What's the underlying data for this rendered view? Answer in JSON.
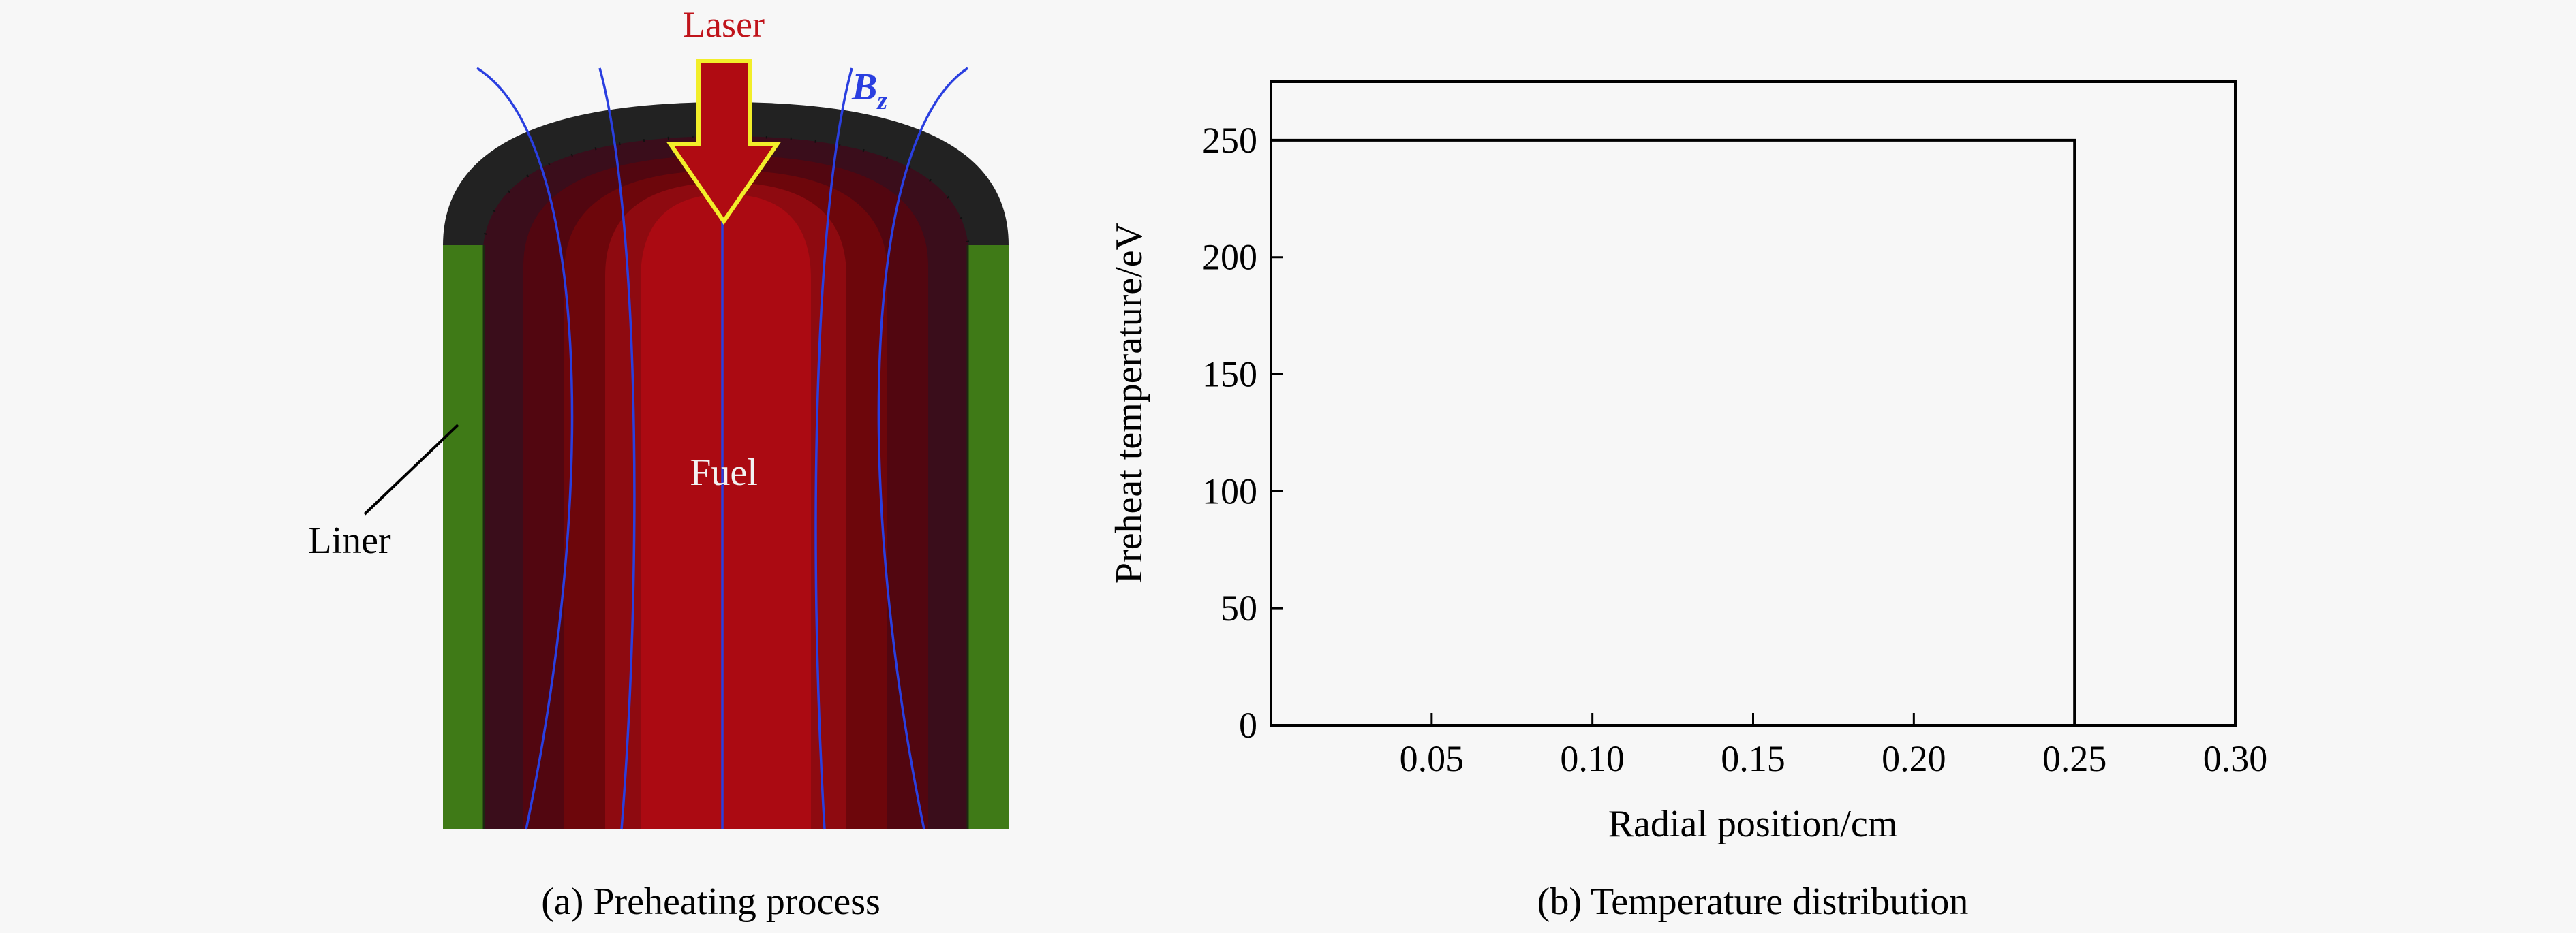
{
  "panel_a": {
    "laser_label": "Laser",
    "field_label_main": "B",
    "field_label_sub": "z",
    "fuel_label": "Fuel",
    "liner_label": "Liner",
    "caption": "(a) Preheating process",
    "colors": {
      "laser_text": "#c0141b",
      "arrow_fill": "#b00b12",
      "arrow_outline": "#f2ee2a",
      "field_lines": "#2a3fe0",
      "liner": "#3f7a17",
      "cap": "#222222",
      "fuel_core": "#ab0a12",
      "fuel_bands": [
        "#8e0a10",
        "#6d060b",
        "#520610",
        "#3a0d1b"
      ]
    }
  },
  "panel_b": {
    "caption": "(b) Temperature distribution"
  },
  "chart_data": {
    "type": "line",
    "title": "",
    "xlabel": "Radial position/cm",
    "ylabel": "Preheat temperature/eV",
    "xlim": [
      0,
      0.3
    ],
    "ylim": [
      0,
      275
    ],
    "xticks": [
      0.05,
      0.1,
      0.15,
      0.2,
      0.25,
      0.3
    ],
    "xtick_labels": [
      "0.05",
      "0.10",
      "0.15",
      "0.20",
      "0.25",
      "0.30"
    ],
    "yticks": [
      0,
      50,
      100,
      150,
      200,
      250
    ],
    "ytick_labels": [
      "0",
      "50",
      "100",
      "150",
      "200",
      "250"
    ],
    "grid": false,
    "series": [
      {
        "name": "Preheat temperature",
        "color": "#000000",
        "x": [
          0,
          0.25,
          0.25,
          0.3
        ],
        "y": [
          250,
          250,
          0,
          0
        ]
      }
    ]
  }
}
